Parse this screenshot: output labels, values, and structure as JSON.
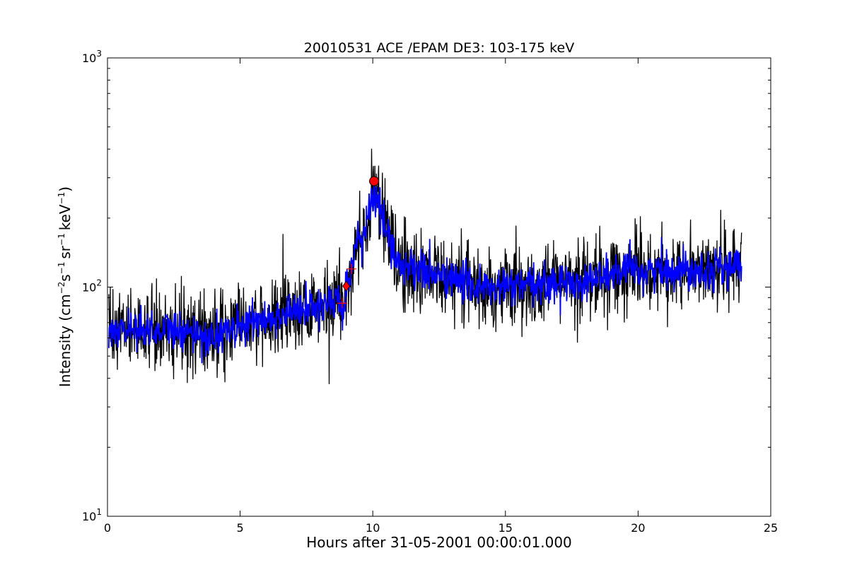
{
  "chart_data": {
    "type": "line",
    "title": "20010531 ACE /EPAM DE3: 103-175 keV",
    "xlabel": "Hours after 31-05-2001 00:00:01.000",
    "ylabel": {
      "prefix": "Intensity (cm",
      "exp1": "−2",
      "mid1": "s",
      "exp2": "−1",
      "mid2": "sr",
      "exp3": "−1",
      "mid3": "keV",
      "exp4": "−1",
      "suffix": ")"
    },
    "xlim": [
      0,
      25
    ],
    "ylim": [
      10,
      1000
    ],
    "yscale": "log",
    "grid": false,
    "x_ticks": [
      {
        "value": 0,
        "label": "0"
      },
      {
        "value": 5,
        "label": "5"
      },
      {
        "value": 10,
        "label": "10"
      },
      {
        "value": 15,
        "label": "15"
      },
      {
        "value": 20,
        "label": "20"
      },
      {
        "value": 25,
        "label": "25"
      }
    ],
    "y_ticks": [
      {
        "value": 10,
        "base": "10",
        "exp": "1"
      },
      {
        "value": 100,
        "base": "10",
        "exp": "2"
      },
      {
        "value": 1000,
        "base": "10",
        "exp": "3"
      }
    ],
    "colors": {
      "raw": "#000000",
      "smoothed": "#0000ff",
      "markers": "#ff0000"
    },
    "series": [
      {
        "style": "raw",
        "x": [
          0.05,
          0.5,
          1.0,
          1.5,
          2.0,
          2.5,
          3.0,
          3.5,
          4.0,
          4.5,
          5.0,
          5.5,
          6.0,
          6.5,
          7.0,
          7.5,
          8.0,
          8.5,
          8.9,
          9.15,
          9.4,
          9.7,
          10.0,
          10.2,
          10.5,
          10.8,
          11.2,
          11.5,
          12.0,
          12.5,
          13.0,
          13.5,
          14.0,
          14.5,
          15.0,
          15.5,
          16.0,
          16.5,
          17.0,
          17.5,
          18.0,
          18.5,
          19.0,
          19.5,
          20.0,
          20.5,
          21.0,
          21.5,
          22.0,
          22.5,
          23.0,
          23.5,
          23.9
        ],
        "y": [
          62,
          66,
          67,
          65,
          66,
          64,
          62,
          63,
          60,
          65,
          68,
          70,
          72,
          76,
          78,
          80,
          83,
          86,
          85,
          110,
          150,
          180,
          250,
          230,
          180,
          140,
          120,
          125,
          115,
          112,
          108,
          105,
          100,
          98,
          100,
          102,
          100,
          103,
          105,
          104,
          106,
          110,
          114,
          116,
          118,
          117,
          119,
          120,
          121,
          120,
          122,
          121,
          122
        ]
      },
      {
        "style": "smoothed",
        "x": [
          0.05,
          0.5,
          1.0,
          1.5,
          2.0,
          2.5,
          3.0,
          3.5,
          4.0,
          4.5,
          5.0,
          5.5,
          6.0,
          6.5,
          7.0,
          7.5,
          8.0,
          8.5,
          8.9,
          9.15,
          9.4,
          9.7,
          10.0,
          10.2,
          10.5,
          10.8,
          11.2,
          11.5,
          12.0,
          12.5,
          13.0,
          13.5,
          14.0,
          14.5,
          15.0,
          15.5,
          16.0,
          16.5,
          17.0,
          17.5,
          18.0,
          18.5,
          19.0,
          19.5,
          20.0,
          20.5,
          21.0,
          21.5,
          22.0,
          22.5,
          23.0,
          23.5,
          23.9
        ],
        "y": [
          62,
          66,
          67,
          65,
          66,
          64,
          62,
          63,
          60,
          65,
          68,
          70,
          72,
          76,
          78,
          80,
          83,
          86,
          85,
          110,
          150,
          180,
          250,
          230,
          180,
          140,
          120,
          125,
          115,
          112,
          108,
          105,
          100,
          98,
          100,
          102,
          100,
          103,
          105,
          104,
          106,
          110,
          114,
          116,
          118,
          117,
          119,
          120,
          121,
          120,
          122,
          121,
          122
        ]
      }
    ],
    "markers": [
      {
        "type": "circle",
        "x": 10.05,
        "y": 290
      },
      {
        "type": "diamond",
        "x": 9.0,
        "y": 101
      },
      {
        "type": "plus",
        "x": 8.85,
        "y": 85
      },
      {
        "type": "plus",
        "x": 9.2,
        "y": 120
      }
    ]
  }
}
